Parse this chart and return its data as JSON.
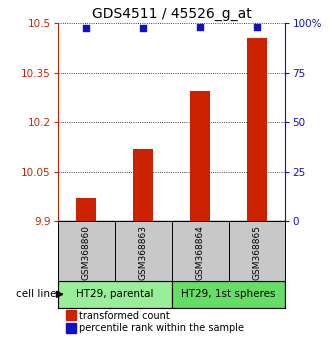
{
  "title": "GDS4511 / 45526_g_at",
  "samples": [
    "GSM368860",
    "GSM368863",
    "GSM368864",
    "GSM368865"
  ],
  "bar_values": [
    9.97,
    10.12,
    10.295,
    10.455
  ],
  "percentile_values": [
    10.485,
    10.485,
    10.488,
    10.489
  ],
  "ylim": [
    9.9,
    10.5
  ],
  "yticks": [
    9.9,
    10.05,
    10.2,
    10.35,
    10.5
  ],
  "ytick_labels": [
    "9.9",
    "10.05",
    "10.2",
    "10.35",
    "10.5"
  ],
  "right_yticks": [
    0,
    25,
    50,
    75,
    100
  ],
  "right_ytick_labels": [
    "0",
    "25",
    "50",
    "75",
    "100%"
  ],
  "bar_color": "#cc2200",
  "dot_color": "#1111cc",
  "bar_bottom": 9.9,
  "bar_width": 0.35,
  "groups": [
    {
      "label": "HT29, parental",
      "samples": [
        0,
        1
      ],
      "color": "#99ee99"
    },
    {
      "label": "HT29, 1st spheres",
      "samples": [
        2,
        3
      ],
      "color": "#66dd66"
    }
  ],
  "cell_line_label": "cell line",
  "legend_red": "transformed count",
  "legend_blue": "percentile rank within the sample",
  "sample_box_color": "#c8c8c8",
  "title_fontsize": 10,
  "tick_fontsize": 7.5,
  "sample_fontsize": 6.5,
  "group_fontsize": 7.5,
  "legend_fontsize": 7
}
